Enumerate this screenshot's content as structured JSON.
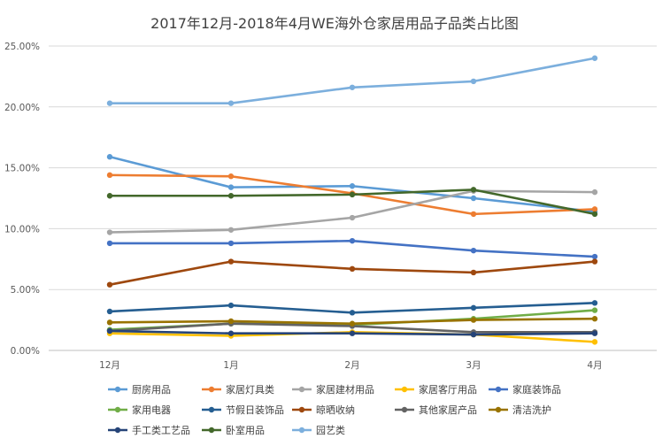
{
  "chart_data": {
    "type": "line",
    "title": "2017年12月-2018年4月WE海外仓家居用品子品类占比图",
    "xlabel": "",
    "ylabel": "",
    "categories": [
      "12月",
      "1月",
      "2月",
      "3月",
      "4月"
    ],
    "ylim": [
      0,
      25
    ],
    "yticks": [
      "0.00%",
      "5.00%",
      "10.00%",
      "15.00%",
      "20.00%",
      "25.00%"
    ],
    "grid": true,
    "legend_position": "bottom",
    "series": [
      {
        "name": "厨房用品",
        "color": "#5B9BD5",
        "values": [
          15.9,
          13.4,
          13.5,
          12.5,
          11.4
        ]
      },
      {
        "name": "家居灯具类",
        "color": "#ED7D31",
        "values": [
          14.4,
          14.3,
          12.9,
          11.2,
          11.6
        ]
      },
      {
        "name": "家居建材用品",
        "color": "#A5A5A5",
        "values": [
          9.7,
          9.9,
          10.9,
          13.1,
          13.0
        ]
      },
      {
        "name": "家居客厅用品",
        "color": "#FFC000",
        "values": [
          1.4,
          1.2,
          1.5,
          1.3,
          0.7
        ]
      },
      {
        "name": "家庭装饰品",
        "color": "#4472C4",
        "values": [
          8.8,
          8.8,
          9.0,
          8.2,
          7.7
        ]
      },
      {
        "name": "家用电器",
        "color": "#70AD47",
        "values": [
          1.7,
          2.2,
          2.1,
          2.6,
          3.3
        ]
      },
      {
        "name": "节假日装饰品",
        "color": "#255E91",
        "values": [
          3.2,
          3.7,
          3.1,
          3.5,
          3.9
        ]
      },
      {
        "name": "晾晒收纳",
        "color": "#9E480E",
        "values": [
          5.4,
          7.3,
          6.7,
          6.4,
          7.3
        ]
      },
      {
        "name": "其他家居产品",
        "color": "#636363",
        "values": [
          1.6,
          2.2,
          2.0,
          1.5,
          1.5
        ]
      },
      {
        "name": "清洁洗护",
        "color": "#997300",
        "values": [
          2.3,
          2.4,
          2.2,
          2.5,
          2.6
        ]
      },
      {
        "name": "手工类工艺品",
        "color": "#264478",
        "values": [
          1.6,
          1.4,
          1.4,
          1.3,
          1.4
        ]
      },
      {
        "name": "卧室用品",
        "color": "#43682B",
        "values": [
          12.7,
          12.7,
          12.8,
          13.2,
          11.2
        ]
      },
      {
        "name": "园艺类",
        "color": "#7CAFDD",
        "values": [
          20.3,
          20.3,
          21.6,
          22.1,
          24.0
        ]
      }
    ]
  }
}
